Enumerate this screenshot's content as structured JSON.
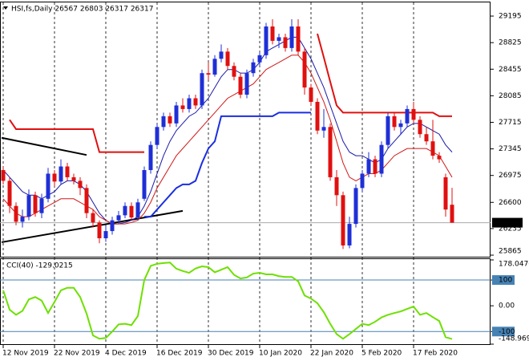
{
  "chart_data": [
    {
      "type": "candlestick",
      "title": "HSI,fs,Daily 26567 26803 26317 26317",
      "categories": [
        "12 Nov 2019",
        null,
        null,
        null,
        null,
        null,
        null,
        null,
        "22 Nov 2019",
        null,
        null,
        null,
        null,
        null,
        null,
        null,
        "4 Dec 2019",
        null,
        null,
        null,
        null,
        null,
        null,
        null,
        "16 Dec 2019",
        null,
        null,
        null,
        null,
        null,
        null,
        null,
        "30 Dec 2019",
        null,
        null,
        null,
        null,
        null,
        null,
        null,
        "10 Jan 2020",
        null,
        null,
        null,
        null,
        null,
        null,
        null,
        "22 Jan 2020",
        null,
        null,
        null,
        null,
        null,
        null,
        null,
        "5 Feb 2020",
        null,
        null,
        null,
        null,
        null,
        null,
        null,
        "17 Feb 2020",
        null,
        null,
        null,
        null,
        null,
        null
      ],
      "open": [
        27050,
        26900,
        26550,
        26330,
        26400,
        26700,
        26450,
        26650,
        27000,
        26890,
        27100,
        26950,
        26900,
        26800,
        26450,
        26320,
        26100,
        26200,
        26350,
        26420,
        26550,
        26390,
        26650,
        27050,
        27400,
        27650,
        27800,
        27700,
        27950,
        27900,
        28050,
        27950,
        28400,
        28380,
        28600,
        28700,
        28500,
        28350,
        28100,
        28400,
        28550,
        28650,
        29050,
        28850,
        28900,
        28750,
        29050,
        28700,
        28200,
        28000,
        27600,
        27650,
        26950,
        26700,
        26000,
        26300,
        26800,
        27000,
        27200,
        27000,
        27400,
        27800,
        27650,
        27700,
        27900,
        27750,
        27550,
        27450,
        27250,
        26950,
        26567
      ],
      "high": [
        27100,
        26950,
        26600,
        26500,
        26780,
        26750,
        26720,
        27080,
        27050,
        27200,
        27150,
        27000,
        26950,
        26850,
        26500,
        26350,
        26280,
        26400,
        26480,
        26600,
        26600,
        26650,
        27100,
        27450,
        27700,
        27850,
        27850,
        28000,
        28050,
        28100,
        28100,
        28450,
        28550,
        28650,
        28800,
        28750,
        28550,
        28400,
        28450,
        28600,
        28700,
        29100,
        29150,
        28950,
        28950,
        29150,
        29150,
        28750,
        28250,
        28050,
        27900,
        27700,
        27050,
        26750,
        26400,
        26850,
        27050,
        27300,
        27250,
        27450,
        27850,
        27850,
        27750,
        27950,
        28000,
        27800,
        27650,
        27750,
        27300,
        27000,
        26803
      ],
      "low": [
        26850,
        26450,
        26280,
        26250,
        26350,
        26400,
        26380,
        26600,
        26820,
        26850,
        26900,
        26850,
        26700,
        26380,
        26250,
        26030,
        26050,
        26150,
        26300,
        26380,
        26350,
        26350,
        26620,
        27000,
        27350,
        27600,
        27650,
        27650,
        27850,
        27850,
        27900,
        27900,
        28300,
        28350,
        28550,
        28450,
        28300,
        28050,
        28050,
        28350,
        28500,
        28600,
        28800,
        28750,
        28700,
        28700,
        28650,
        28100,
        27950,
        27550,
        27500,
        26900,
        26550,
        25950,
        25960,
        26250,
        26750,
        26950,
        26950,
        26950,
        27350,
        27600,
        27550,
        27650,
        27700,
        27500,
        27400,
        27200,
        27150,
        26400,
        26317
      ],
      "close": [
        26900,
        26550,
        26330,
        26400,
        26700,
        26450,
        26650,
        27000,
        26890,
        27100,
        26950,
        26900,
        26800,
        26450,
        26320,
        26100,
        26200,
        26350,
        26420,
        26550,
        26390,
        26600,
        27050,
        27400,
        27650,
        27800,
        27700,
        27950,
        27900,
        28050,
        27950,
        28400,
        28380,
        28600,
        28700,
        28500,
        28350,
        28100,
        28400,
        28550,
        28650,
        29050,
        28850,
        28900,
        28750,
        29050,
        28700,
        28200,
        28000,
        27600,
        27650,
        26950,
        26700,
        26000,
        26300,
        26800,
        27000,
        27200,
        27000,
        27400,
        27800,
        27650,
        27700,
        27900,
        27750,
        27550,
        27450,
        27250,
        27200,
        26500,
        26317
      ],
      "up_color": "#1f2fd6",
      "down_color": "#e01010",
      "lines": [
        {
          "color": "#1a1aa8",
          "width": 1,
          "values": [
            27050,
            26950,
            26850,
            26750,
            26700,
            26700,
            26650,
            26700,
            26750,
            26850,
            26900,
            26900,
            26850,
            26750,
            26600,
            26450,
            26350,
            26300,
            26300,
            26320,
            26350,
            26400,
            26550,
            26750,
            27000,
            27250,
            27450,
            27600,
            27700,
            27800,
            27850,
            27950,
            28050,
            28200,
            28350,
            28450,
            28450,
            28400,
            28400,
            28450,
            28550,
            28700,
            28750,
            28800,
            28850,
            28900,
            28900,
            28750,
            28600,
            28400,
            28200,
            27950,
            27700,
            27450,
            27300,
            27250,
            27250,
            27200,
            27150,
            27200,
            27350,
            27450,
            27550,
            27650,
            27700,
            27700,
            27650,
            27600,
            27550,
            27400,
            27300
          ]
        },
        {
          "color": "#d01818",
          "width": 1,
          "values": [
            26650,
            26550,
            26450,
            26400,
            26400,
            26450,
            26500,
            26550,
            26600,
            26650,
            26650,
            26650,
            26600,
            26550,
            26500,
            26400,
            26350,
            26300,
            26300,
            26300,
            26320,
            26350,
            26450,
            26600,
            26800,
            26950,
            27100,
            27250,
            27350,
            27450,
            27550,
            27650,
            27750,
            27850,
            27950,
            28050,
            28100,
            28150,
            28200,
            28250,
            28350,
            28450,
            28500,
            28550,
            28600,
            28650,
            28650,
            28550,
            28400,
            28200,
            28000,
            27750,
            27450,
            27150,
            26950,
            26900,
            26950,
            27000,
            27000,
            27050,
            27150,
            27250,
            27300,
            27350,
            27350,
            27350,
            27350,
            27300,
            27250,
            27100,
            26950
          ]
        },
        {
          "color": "#e01010",
          "width": 2,
          "values": [
            null,
            27750,
            27620,
            27620,
            27620,
            27620,
            27620,
            27620,
            27620,
            27620,
            27620,
            27620,
            27620,
            27620,
            27620,
            27300,
            27300,
            27300,
            27300,
            27300,
            27300,
            27300,
            27300,
            null,
            null,
            null,
            null,
            null,
            null,
            null,
            null,
            null,
            null,
            null,
            null,
            null,
            null,
            null,
            null,
            null,
            null,
            null,
            null,
            null,
            null,
            null,
            null,
            null,
            null,
            28950,
            28620,
            28280,
            27950,
            27850,
            27850,
            27850,
            27850,
            27850,
            27850,
            27850,
            27850,
            27850,
            27850,
            27850,
            27850,
            27850,
            27850,
            27850,
            27800,
            27800,
            27800
          ]
        },
        {
          "color": "#1a2ee0",
          "width": 2,
          "values": [
            null,
            null,
            null,
            null,
            null,
            null,
            null,
            null,
            null,
            null,
            null,
            null,
            null,
            null,
            null,
            null,
            null,
            null,
            null,
            null,
            null,
            null,
            26400,
            26400,
            26500,
            26600,
            26700,
            26800,
            26850,
            26850,
            26900,
            27150,
            27350,
            27450,
            27800,
            27800,
            27800,
            27800,
            27800,
            27800,
            27800,
            27800,
            27800,
            27850,
            27850,
            27850,
            27850,
            27850,
            27850,
            null,
            null,
            null,
            null,
            null,
            null,
            null,
            null,
            null,
            null,
            null,
            null,
            null,
            null,
            null,
            null,
            null,
            null,
            null,
            null,
            null,
            null
          ]
        }
      ],
      "trendlines": [
        {
          "color": "#000000",
          "x": [
            0,
            13
          ],
          "values": [
            27500,
            27260
          ]
        },
        {
          "color": "#000000",
          "x": [
            0,
            28
          ],
          "values": [
            26045,
            26481
          ]
        }
      ],
      "last_price": 26317,
      "ylim": [
        25843,
        29363
      ],
      "yticks": [
        29195,
        28825,
        28455,
        28085,
        27715,
        27345,
        26975,
        26600,
        26235,
        25865
      ],
      "x_grid": true
    },
    {
      "type": "line",
      "title": "CCI(40) -129.0215",
      "color": "#6ee000",
      "values": [
        60,
        -15,
        -35,
        -20,
        25,
        34,
        20,
        -28,
        15,
        60,
        70,
        70,
        34,
        -30,
        -115,
        -128,
        -125,
        -100,
        -72,
        -70,
        -75,
        -40,
        100,
        155,
        163,
        166,
        168,
        144,
        135,
        128,
        145,
        153,
        150,
        130,
        140,
        150,
        120,
        106,
        110,
        125,
        128,
        122,
        122,
        115,
        112,
        112,
        95,
        40,
        28,
        10,
        -25,
        -70,
        -110,
        -128,
        -110,
        -90,
        -70,
        -75,
        -62,
        -45,
        -35,
        -28,
        -22,
        -12,
        -3,
        -35,
        -28,
        -44,
        -59,
        -122,
        -129.0215
      ],
      "ylim": [
        -148.969,
        178.0476
      ],
      "yticks": [
        178.0476,
        100,
        {
          "value": 0,
          "label": "0.00"
        },
        -100,
        -148.969
      ],
      "levels": [
        100,
        -100
      ],
      "level_color": "#4682b4"
    }
  ]
}
